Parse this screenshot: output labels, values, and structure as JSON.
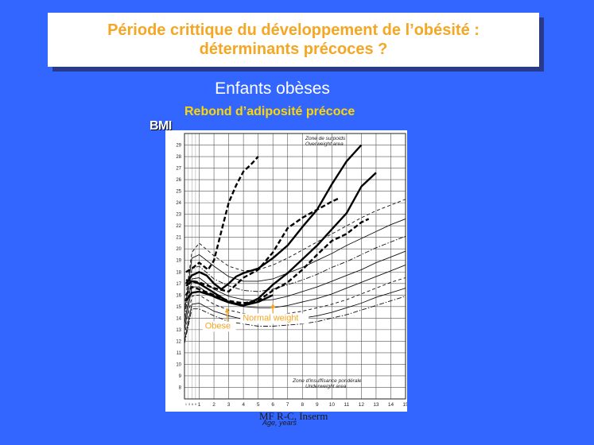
{
  "title": {
    "line1": "Période crittique du développement de l’obésité :",
    "line2": "déterminants précoces ?"
  },
  "subtitle": "Enfants obèses",
  "subtitle2": "Rebond d’adiposité précoce",
  "credit": "MF R-C, Inserm",
  "colors": {
    "background": "#3366FF",
    "title_text": "#F5A623",
    "highlight": "#FFD700",
    "annotation": "#F5A623"
  },
  "chart_data": {
    "type": "line",
    "ylabel": "BMI",
    "xlabel": "Age, years",
    "xlim": [
      0,
      15
    ],
    "ylim": [
      7,
      30
    ],
    "x_ticks": [
      1,
      2,
      3,
      4,
      5,
      6,
      7,
      8,
      9,
      10,
      11,
      12,
      13,
      14,
      15
    ],
    "x_minor_ticks": [
      "1",
      "3",
      "6",
      "9"
    ],
    "y_ticks": [
      8,
      9,
      10,
      11,
      12,
      13,
      14,
      15,
      16,
      17,
      18,
      19,
      20,
      21,
      22,
      23,
      24,
      25,
      26,
      27,
      28,
      29
    ],
    "zone_upper": {
      "line1": "Zone de surpoids",
      "line2": "Overweight area"
    },
    "zone_lower": {
      "line1": "Zone d'insuffisance pondérale",
      "line2": "Underweight area"
    },
    "annotations": [
      {
        "label": "Normal weight",
        "x": 6.0,
        "y": 15.3
      },
      {
        "label": "Obese",
        "x": 2.9,
        "y": 14.9
      }
    ],
    "reference_curves": [
      {
        "style": "dashed",
        "points": [
          [
            0,
            15
          ],
          [
            0.5,
            19.7
          ],
          [
            1,
            20.5
          ],
          [
            2,
            19.4
          ],
          [
            3,
            18.5
          ],
          [
            4,
            18.1
          ],
          [
            5,
            18.2
          ],
          [
            6,
            18.6
          ],
          [
            7,
            19.2
          ],
          [
            8,
            19.9
          ],
          [
            9,
            20.6
          ],
          [
            10,
            21.3
          ],
          [
            11,
            22.0
          ],
          [
            12,
            22.7
          ],
          [
            13,
            23.3
          ],
          [
            14,
            23.8
          ],
          [
            15,
            24.3
          ]
        ]
      },
      {
        "style": "solid",
        "points": [
          [
            0,
            14.5
          ],
          [
            0.5,
            19.2
          ],
          [
            1,
            19.5
          ],
          [
            2,
            18.5
          ],
          [
            3,
            17.6
          ],
          [
            4,
            17.2
          ],
          [
            5,
            17.2
          ],
          [
            6,
            17.4
          ],
          [
            7,
            17.9
          ],
          [
            8,
            18.4
          ],
          [
            9,
            19.0
          ],
          [
            10,
            19.6
          ],
          [
            11,
            20.3
          ],
          [
            12,
            20.9
          ],
          [
            13,
            21.5
          ],
          [
            14,
            22.1
          ],
          [
            15,
            22.6
          ]
        ]
      },
      {
        "style": "dashdot",
        "points": [
          [
            0,
            14.0
          ],
          [
            0.5,
            18.3
          ],
          [
            1,
            18.5
          ],
          [
            2,
            17.4
          ],
          [
            3,
            16.8
          ],
          [
            4,
            16.4
          ],
          [
            5,
            16.3
          ],
          [
            6,
            16.5
          ],
          [
            7,
            16.9
          ],
          [
            8,
            17.3
          ],
          [
            9,
            17.8
          ],
          [
            10,
            18.4
          ],
          [
            11,
            18.9
          ],
          [
            12,
            19.5
          ],
          [
            13,
            20.1
          ],
          [
            14,
            20.6
          ],
          [
            15,
            21.1
          ]
        ]
      },
      {
        "style": "solid",
        "points": [
          [
            0,
            13.5
          ],
          [
            0.5,
            17.4
          ],
          [
            1,
            17.5
          ],
          [
            2,
            16.5
          ],
          [
            3,
            15.9
          ],
          [
            4,
            15.6
          ],
          [
            5,
            15.5
          ],
          [
            6,
            15.6
          ],
          [
            7,
            15.9
          ],
          [
            8,
            16.3
          ],
          [
            9,
            16.7
          ],
          [
            10,
            17.2
          ],
          [
            11,
            17.7
          ],
          [
            12,
            18.2
          ],
          [
            13,
            18.8
          ],
          [
            14,
            19.3
          ],
          [
            15,
            19.8
          ]
        ]
      },
      {
        "style": "solid",
        "points": [
          [
            0,
            13.0
          ],
          [
            0.5,
            16.7
          ],
          [
            1,
            16.7
          ],
          [
            2,
            15.8
          ],
          [
            3,
            15.3
          ],
          [
            4,
            15.0
          ],
          [
            5,
            14.9
          ],
          [
            6,
            14.9
          ],
          [
            7,
            15.1
          ],
          [
            8,
            15.4
          ],
          [
            9,
            15.7
          ],
          [
            10,
            16.1
          ],
          [
            11,
            16.6
          ],
          [
            12,
            17.1
          ],
          [
            13,
            17.6
          ],
          [
            14,
            18.1
          ],
          [
            15,
            18.6
          ]
        ]
      },
      {
        "style": "dashed",
        "points": [
          [
            0,
            12.5
          ],
          [
            0.5,
            15.9
          ],
          [
            1,
            16.0
          ],
          [
            2,
            15.2
          ],
          [
            3,
            14.7
          ],
          [
            4,
            14.4
          ],
          [
            5,
            14.3
          ],
          [
            6,
            14.3
          ],
          [
            7,
            14.4
          ],
          [
            8,
            14.6
          ],
          [
            9,
            14.9
          ],
          [
            10,
            15.2
          ],
          [
            11,
            15.6
          ],
          [
            12,
            16.1
          ],
          [
            13,
            16.6
          ],
          [
            14,
            17.1
          ],
          [
            15,
            17.5
          ]
        ]
      },
      {
        "style": "solid",
        "points": [
          [
            0,
            12.0
          ],
          [
            0.5,
            15.2
          ],
          [
            1,
            15.3
          ],
          [
            2,
            14.6
          ],
          [
            3,
            14.2
          ],
          [
            4,
            13.9
          ],
          [
            5,
            13.8
          ],
          [
            6,
            13.7
          ],
          [
            7,
            13.8
          ],
          [
            8,
            14.0
          ],
          [
            9,
            14.2
          ],
          [
            10,
            14.5
          ],
          [
            11,
            14.9
          ],
          [
            12,
            15.3
          ],
          [
            13,
            15.8
          ],
          [
            14,
            16.2
          ],
          [
            15,
            16.6
          ]
        ]
      },
      {
        "style": "dashdot",
        "points": [
          [
            0,
            11.8
          ],
          [
            0.5,
            14.8
          ],
          [
            1,
            14.8
          ],
          [
            2,
            14.2
          ],
          [
            3,
            13.7
          ],
          [
            4,
            13.5
          ],
          [
            5,
            13.3
          ],
          [
            6,
            13.3
          ],
          [
            7,
            13.4
          ],
          [
            8,
            13.5
          ],
          [
            9,
            13.7
          ],
          [
            10,
            14.0
          ],
          [
            11,
            14.3
          ],
          [
            12,
            14.7
          ],
          [
            13,
            15.1
          ],
          [
            14,
            15.5
          ],
          [
            15,
            15.9
          ]
        ]
      }
    ],
    "series": [
      {
        "style": "dashed-bold",
        "points": [
          [
            0.1,
            18
          ],
          [
            0.5,
            18.3
          ],
          [
            1,
            18.8
          ],
          [
            1.6,
            18.2
          ],
          [
            2,
            19.0
          ],
          [
            2.5,
            21.5
          ],
          [
            3,
            24.0
          ],
          [
            3.5,
            25.5
          ],
          [
            4,
            26.7
          ],
          [
            4.5,
            27.3
          ],
          [
            5,
            28.0
          ]
        ]
      },
      {
        "style": "solid-bold",
        "points": [
          [
            0.1,
            17
          ],
          [
            0.5,
            17.7
          ],
          [
            1,
            18.0
          ],
          [
            1.5,
            17.7
          ],
          [
            2,
            17.0
          ],
          [
            2.5,
            16.5
          ],
          [
            3,
            17.0
          ],
          [
            3.5,
            17.6
          ],
          [
            4,
            17.9
          ],
          [
            5,
            18.3
          ],
          [
            6,
            19.2
          ],
          [
            7,
            20.3
          ],
          [
            8,
            21.9
          ],
          [
            9,
            23.4
          ],
          [
            10,
            25.6
          ],
          [
            11,
            27.6
          ],
          [
            12,
            29.0
          ]
        ]
      },
      {
        "style": "dashed-bold",
        "points": [
          [
            0.1,
            17.3
          ],
          [
            1,
            17.1
          ],
          [
            2,
            16.6
          ],
          [
            3,
            16.3
          ],
          [
            4,
            17.5
          ],
          [
            5,
            18.2
          ],
          [
            6,
            19.7
          ],
          [
            7,
            21.8
          ],
          [
            8,
            22.7
          ],
          [
            9,
            23.4
          ],
          [
            10,
            24.1
          ],
          [
            10.5,
            24.4
          ]
        ]
      },
      {
        "style": "solid-bold",
        "points": [
          [
            0.1,
            16.8
          ],
          [
            0.5,
            17.2
          ],
          [
            1,
            17.0
          ],
          [
            2,
            16.2
          ],
          [
            3,
            15.4
          ],
          [
            4,
            15.1
          ],
          [
            5,
            15.7
          ],
          [
            6,
            16.9
          ],
          [
            7,
            17.9
          ],
          [
            8,
            19.1
          ],
          [
            9,
            20.3
          ],
          [
            10,
            21.7
          ],
          [
            11,
            23.1
          ],
          [
            12,
            25.4
          ],
          [
            13,
            26.6
          ]
        ]
      },
      {
        "style": "dashed-bold",
        "points": [
          [
            0.1,
            16.0
          ],
          [
            0.5,
            16.7
          ],
          [
            1,
            16.5
          ],
          [
            2,
            16.0
          ],
          [
            3,
            15.5
          ],
          [
            4,
            15.3
          ],
          [
            5,
            15.5
          ],
          [
            6,
            16.4
          ],
          [
            7,
            17.1
          ],
          [
            8,
            18.2
          ],
          [
            9,
            19.5
          ],
          [
            10,
            20.7
          ],
          [
            11,
            21.3
          ],
          [
            12,
            22.3
          ],
          [
            12.5,
            22.6
          ]
        ]
      },
      {
        "style": "solid-bold",
        "points": [
          [
            0.1,
            15.5
          ],
          [
            0.5,
            16.2
          ],
          [
            1,
            16.3
          ],
          [
            2,
            15.9
          ],
          [
            2.5,
            15.6
          ],
          [
            3,
            15.4
          ],
          [
            4,
            15.1
          ],
          [
            5,
            15.4
          ],
          [
            6,
            16.0
          ]
        ]
      }
    ]
  }
}
